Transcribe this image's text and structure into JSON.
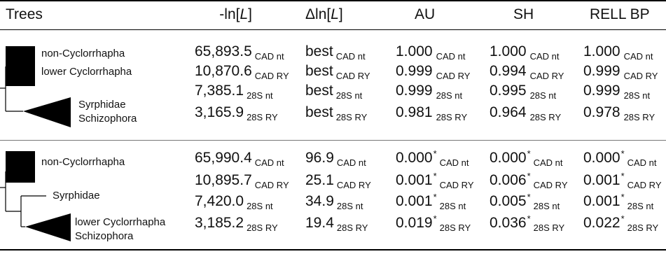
{
  "header": {
    "trees": "Trees",
    "lnl": "-ln[L]",
    "dlnl": "Δln[L]",
    "au": "AU",
    "sh": "SH",
    "rell": "RELL BP"
  },
  "tree1": {
    "labels": [
      "non-Cyclorrhapha",
      "lower Cyclorrhapha",
      "Syrphidae",
      "Schizophora"
    ]
  },
  "tree2": {
    "labels": [
      "non-Cyclorrhapha",
      "Syrphidae",
      "lower Cyclorrhapha",
      "Schizophora"
    ]
  },
  "block1": [
    {
      "lnl": "65,893.5",
      "lnl_sub": "CAD nt",
      "dlnl": "best",
      "dlnl_sub": "CAD nt",
      "au": "1.000",
      "au_star": "",
      "au_sub": "CAD nt",
      "sh": "1.000",
      "sh_star": "",
      "sh_sub": "CAD nt",
      "rell": "1.000",
      "rell_star": "",
      "rell_sub": "CAD nt"
    },
    {
      "lnl": "10,870.6",
      "lnl_sub": "CAD RY",
      "dlnl": "best",
      "dlnl_sub": "CAD RY",
      "au": "0.999",
      "au_star": "",
      "au_sub": "CAD RY",
      "sh": "0.994",
      "sh_star": "",
      "sh_sub": "CAD RY",
      "rell": "0.999",
      "rell_star": "",
      "rell_sub": "CAD RY"
    },
    {
      "lnl": "7,385.1",
      "lnl_sub": "28S nt",
      "dlnl": "best",
      "dlnl_sub": "28S nt",
      "au": "0.999",
      "au_star": "",
      "au_sub": "28S nt",
      "sh": "0.995",
      "sh_star": "",
      "sh_sub": "28S nt",
      "rell": "0.999",
      "rell_star": "",
      "rell_sub": "28S nt"
    },
    {
      "lnl": "3,165.9",
      "lnl_sub": "28S RY",
      "dlnl": "best",
      "dlnl_sub": "28S RY",
      "au": "0.981",
      "au_star": "",
      "au_sub": "28S RY",
      "sh": "0.964",
      "sh_star": "",
      "sh_sub": "28S RY",
      "rell": "0.978",
      "rell_star": "",
      "rell_sub": "28S RY"
    }
  ],
  "block2": [
    {
      "lnl": "65,990.4",
      "lnl_sub": "CAD nt",
      "dlnl": "96.9",
      "dlnl_sub": "CAD nt",
      "au": "0.000",
      "au_star": "*",
      "au_sub": "CAD nt",
      "sh": "0.000",
      "sh_star": "*",
      "sh_sub": "CAD nt",
      "rell": "0.000",
      "rell_star": "*",
      "rell_sub": "CAD nt"
    },
    {
      "lnl": "10,895.7",
      "lnl_sub": "CAD RY",
      "dlnl": "25.1",
      "dlnl_sub": "CAD RY",
      "au": "0.001",
      "au_star": "*",
      "au_sub": "CAD RY",
      "sh": "0.006",
      "sh_star": "*",
      "sh_sub": "CAD RY",
      "rell": "0.001",
      "rell_star": "*",
      "rell_sub": "CAD RY"
    },
    {
      "lnl": "7,420.0",
      "lnl_sub": "28S nt",
      "dlnl": "34.9",
      "dlnl_sub": "28S nt",
      "au": "0.001",
      "au_star": "*",
      "au_sub": "28S nt",
      "sh": "0.005",
      "sh_star": "*",
      "sh_sub": "28S nt",
      "rell": "0.001",
      "rell_star": "*",
      "rell_sub": "28S nt"
    },
    {
      "lnl": "3,185.2",
      "lnl_sub": "28S RY",
      "dlnl": "19.4",
      "dlnl_sub": "28S RY",
      "au": "0.019",
      "au_star": "*",
      "au_sub": "28S RY",
      "sh": "0.036",
      "sh_star": "*",
      "sh_sub": "28S RY",
      "rell": "0.022",
      "rell_star": "*",
      "rell_sub": "28S RY"
    }
  ]
}
